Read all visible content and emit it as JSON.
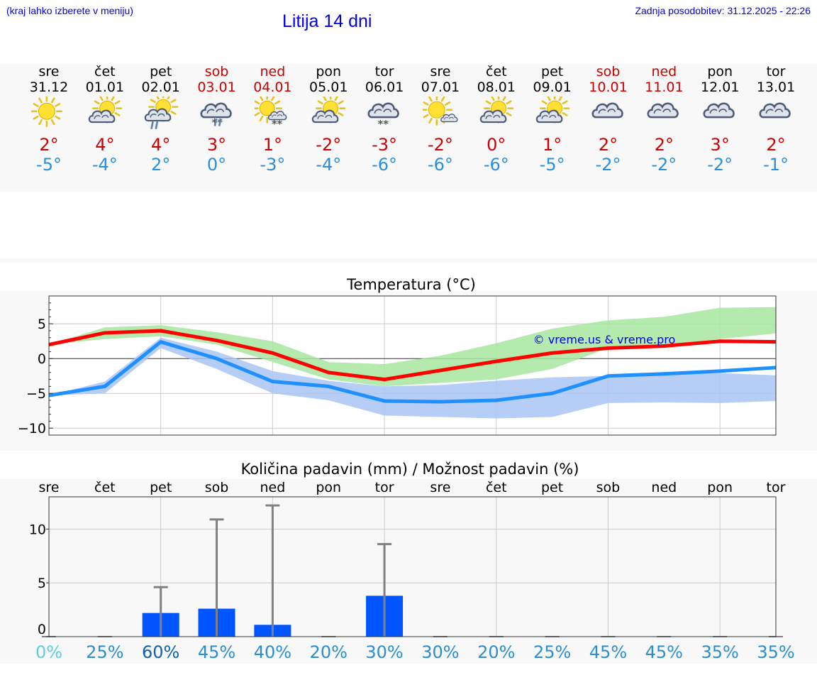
{
  "header": {
    "hint": "(kraj lahko izberete v meniju)",
    "title": "Litija 14 dni",
    "updated": "Zadnja posodobitev: 31.12.2025 - 22:26"
  },
  "days": [
    {
      "name": "sre",
      "date": "31.12",
      "weekend": false,
      "icon": "sunny-icon",
      "tmax": "2°",
      "tmin": "-5°"
    },
    {
      "name": "čet",
      "date": "01.01",
      "weekend": false,
      "icon": "partly-cloudy-icon",
      "tmax": "4°",
      "tmin": "-4°"
    },
    {
      "name": "pet",
      "date": "02.01",
      "weekend": false,
      "icon": "partly-cloudy-rain-icon",
      "tmax": "4°",
      "tmin": "2°"
    },
    {
      "name": "sob",
      "date": "03.01",
      "weekend": true,
      "icon": "cloudy-sleet-icon",
      "tmax": "3°",
      "tmin": "0°"
    },
    {
      "name": "ned",
      "date": "04.01",
      "weekend": true,
      "icon": "partly-cloudy-snow-icon",
      "tmax": "1°",
      "tmin": "-3°"
    },
    {
      "name": "pon",
      "date": "05.01",
      "weekend": false,
      "icon": "partly-cloudy-icon",
      "tmax": "-2°",
      "tmin": "-4°"
    },
    {
      "name": "tor",
      "date": "06.01",
      "weekend": false,
      "icon": "cloudy-snow-icon",
      "tmax": "-3°",
      "tmin": "-6°"
    },
    {
      "name": "sre",
      "date": "07.01",
      "weekend": false,
      "icon": "mostly-sunny-icon",
      "tmax": "-2°",
      "tmin": "-6°"
    },
    {
      "name": "čet",
      "date": "08.01",
      "weekend": false,
      "icon": "partly-cloudy-icon",
      "tmax": "0°",
      "tmin": "-6°"
    },
    {
      "name": "pet",
      "date": "09.01",
      "weekend": false,
      "icon": "partly-cloudy-icon",
      "tmax": "1°",
      "tmin": "-5°"
    },
    {
      "name": "sob",
      "date": "10.01",
      "weekend": true,
      "icon": "cloudy-icon",
      "tmax": "2°",
      "tmin": "-2°"
    },
    {
      "name": "ned",
      "date": "11.01",
      "weekend": true,
      "icon": "cloudy-icon",
      "tmax": "2°",
      "tmin": "-2°"
    },
    {
      "name": "pon",
      "date": "12.01",
      "weekend": false,
      "icon": "cloudy-icon",
      "tmax": "3°",
      "tmin": "-2°"
    },
    {
      "name": "tor",
      "date": "13.01",
      "weekend": false,
      "icon": "cloudy-icon",
      "tmax": "2°",
      "tmin": "-1°"
    }
  ],
  "colors": {
    "max_line": "#ff0000",
    "min_line": "#1e90ff",
    "max_band": "#a8e6a1",
    "min_band": "#a9c4f5",
    "overlap_band": "#7fc4a4",
    "precip_bar": "#0055ff",
    "error_bar": "#808080",
    "copyright": "#0000ee"
  },
  "chart_data": [
    {
      "type": "line",
      "title": "Temperatura (°C)",
      "xlabel": "",
      "ylabel": "",
      "x": [
        0,
        1,
        2,
        3,
        4,
        5,
        6,
        7,
        8,
        9,
        10,
        11,
        12,
        13
      ],
      "ylim": [
        -11,
        9
      ],
      "yticks": [
        5,
        0,
        -5,
        -10
      ],
      "grid": true,
      "annotation": "© vreme.us & vreme.pro",
      "series": [
        {
          "name": "max",
          "values": [
            2,
            3.7,
            4,
            2.6,
            0.8,
            -2,
            -3,
            -1.7,
            -0.4,
            0.8,
            1.5,
            1.8,
            2.5,
            2.4
          ]
        },
        {
          "name": "min",
          "values": [
            -5.3,
            -4,
            2.4,
            0,
            -3.3,
            -4,
            -6.1,
            -6.2,
            -6,
            -5,
            -2.5,
            -2.2,
            -1.8,
            -1.3
          ]
        }
      ],
      "bands": [
        {
          "name": "max-range-low",
          "values": [
            2,
            2.8,
            3.2,
            2,
            -0.5,
            -3,
            -4,
            -3.5,
            -3,
            -1.5,
            1.5,
            2,
            2.8,
            3.6
          ]
        },
        {
          "name": "max-range-high",
          "values": [
            2,
            4.5,
            4.8,
            3.8,
            2.5,
            -0.5,
            -0.8,
            0.4,
            2.2,
            4.3,
            5.5,
            6,
            7.3,
            7.4
          ]
        },
        {
          "name": "min-range-low",
          "values": [
            -5.3,
            -5,
            1.5,
            -1.5,
            -5,
            -6,
            -8.2,
            -8.4,
            -8.6,
            -8.4,
            -6.4,
            -6.3,
            -6.4,
            -6.1
          ]
        },
        {
          "name": "min-range-high",
          "values": [
            -5.3,
            -3.3,
            3,
            1,
            -1.8,
            -3.2,
            -4,
            -3.8,
            -3.2,
            -2.7,
            -2.5,
            -2.2,
            -2.1,
            -2.4
          ]
        }
      ]
    },
    {
      "type": "bar",
      "title": "Količina padavin (mm) / Možnost padavin (%)",
      "xlabel": "",
      "ylabel": "",
      "categories": [
        "sre",
        "čet",
        "pet",
        "sob",
        "ned",
        "pon",
        "tor",
        "sre",
        "čet",
        "pet",
        "sob",
        "ned",
        "pon",
        "tor"
      ],
      "values": [
        0,
        0,
        2.2,
        2.6,
        1.1,
        0,
        3.8,
        0,
        0,
        0,
        0,
        0,
        0,
        0
      ],
      "error_high": [
        0,
        0,
        4.6,
        10.9,
        12.2,
        0,
        8.6,
        0,
        0,
        0,
        0,
        0,
        0,
        0
      ],
      "ylim": [
        0,
        13
      ],
      "yticks": [
        10,
        5,
        0
      ],
      "grid": true,
      "probability": [
        "0%",
        "25%",
        "60%",
        "45%",
        "40%",
        "20%",
        "30%",
        "30%",
        "20%",
        "25%",
        "45%",
        "45%",
        "35%",
        "35%"
      ],
      "probability_values": [
        0,
        25,
        60,
        45,
        40,
        20,
        30,
        30,
        20,
        25,
        45,
        45,
        35,
        35
      ]
    }
  ]
}
